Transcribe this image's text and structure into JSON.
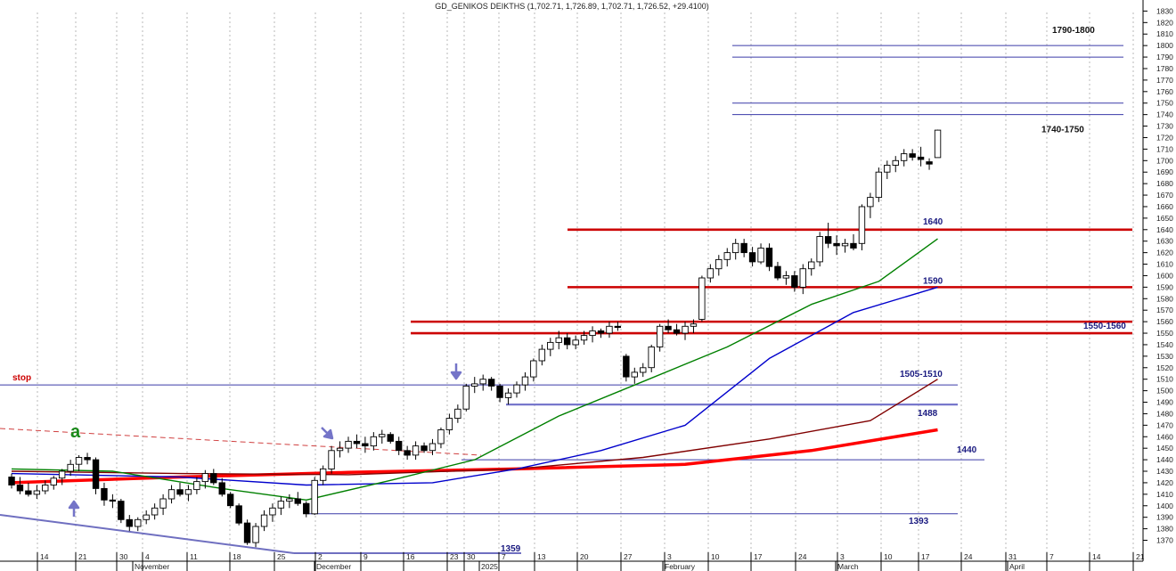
{
  "chart_data": {
    "type": "candlestick",
    "title": "GD_GENIKOS DEIKTHS (1,702.71, 1,726.89, 1,702.71, 1,726.52, +29.4100)",
    "y_range": [
      1362,
      1833
    ],
    "y_ticks": [
      1370,
      1380,
      1390,
      1400,
      1410,
      1420,
      1430,
      1440,
      1450,
      1460,
      1470,
      1480,
      1490,
      1500,
      1510,
      1520,
      1530,
      1540,
      1550,
      1560,
      1570,
      1580,
      1590,
      1600,
      1610,
      1620,
      1630,
      1640,
      1650,
      1660,
      1670,
      1680,
      1690,
      1700,
      1710,
      1720,
      1730,
      1740,
      1750,
      1760,
      1770,
      1780,
      1790,
      1800,
      1810,
      1820,
      1830
    ],
    "x_day_labels": [
      "14",
      "21",
      "30",
      "4",
      "11",
      "18",
      "25",
      "2",
      "9",
      "16",
      "23",
      "30",
      "7",
      "13",
      "20",
      "27",
      "3",
      "10",
      "17",
      "24",
      "3",
      "10",
      "17",
      "24",
      "31",
      "7",
      "14",
      "21"
    ],
    "x_month_labels": [
      "November",
      "December",
      "2025",
      "February",
      "March",
      "April"
    ],
    "candles": [
      [
        1425,
        1428,
        1415,
        1418
      ],
      [
        1418,
        1425,
        1410,
        1413
      ],
      [
        1413,
        1420,
        1408,
        1410
      ],
      [
        1410,
        1418,
        1406,
        1413
      ],
      [
        1413,
        1422,
        1410,
        1418
      ],
      [
        1418,
        1426,
        1414,
        1424
      ],
      [
        1424,
        1432,
        1418,
        1430
      ],
      [
        1430,
        1440,
        1426,
        1436
      ],
      [
        1436,
        1444,
        1430,
        1442
      ],
      [
        1442,
        1446,
        1436,
        1440
      ],
      [
        1440,
        1442,
        1410,
        1415
      ],
      [
        1415,
        1420,
        1400,
        1405
      ],
      [
        1405,
        1410,
        1398,
        1404
      ],
      [
        1404,
        1406,
        1385,
        1388
      ],
      [
        1388,
        1392,
        1378,
        1382
      ],
      [
        1382,
        1390,
        1378,
        1388
      ],
      [
        1388,
        1396,
        1384,
        1392
      ],
      [
        1392,
        1402,
        1388,
        1398
      ],
      [
        1398,
        1410,
        1392,
        1406
      ],
      [
        1406,
        1418,
        1402,
        1414
      ],
      [
        1414,
        1420,
        1408,
        1410
      ],
      [
        1410,
        1418,
        1404,
        1414
      ],
      [
        1414,
        1425,
        1410,
        1421
      ],
      [
        1421,
        1431,
        1415,
        1428
      ],
      [
        1428,
        1432,
        1418,
        1420
      ],
      [
        1420,
        1424,
        1408,
        1410
      ],
      [
        1410,
        1412,
        1398,
        1400
      ],
      [
        1400,
        1402,
        1383,
        1385
      ],
      [
        1385,
        1388,
        1366,
        1368
      ],
      [
        1368,
        1385,
        1364,
        1382
      ],
      [
        1382,
        1396,
        1378,
        1392
      ],
      [
        1392,
        1402,
        1386,
        1398
      ],
      [
        1398,
        1408,
        1392,
        1404
      ],
      [
        1404,
        1410,
        1398,
        1406
      ],
      [
        1406,
        1412,
        1400,
        1402
      ],
      [
        1402,
        1404,
        1390,
        1393
      ],
      [
        1393,
        1425,
        1392,
        1422
      ],
      [
        1422,
        1435,
        1418,
        1432
      ],
      [
        1432,
        1452,
        1428,
        1448
      ],
      [
        1448,
        1456,
        1442,
        1450
      ],
      [
        1450,
        1460,
        1446,
        1456
      ],
      [
        1456,
        1462,
        1450,
        1454
      ],
      [
        1454,
        1460,
        1446,
        1452
      ],
      [
        1452,
        1464,
        1448,
        1460
      ],
      [
        1460,
        1466,
        1454,
        1462
      ],
      [
        1462,
        1464,
        1454,
        1456
      ],
      [
        1456,
        1460,
        1444,
        1448
      ],
      [
        1448,
        1452,
        1440,
        1444
      ],
      [
        1444,
        1456,
        1440,
        1452
      ],
      [
        1452,
        1455,
        1446,
        1448
      ],
      [
        1448,
        1458,
        1444,
        1454
      ],
      [
        1454,
        1468,
        1450,
        1466
      ],
      [
        1466,
        1480,
        1462,
        1476
      ],
      [
        1476,
        1488,
        1472,
        1484
      ],
      [
        1484,
        1506,
        1482,
        1504
      ],
      [
        1504,
        1512,
        1498,
        1506
      ],
      [
        1506,
        1514,
        1500,
        1510
      ],
      [
        1510,
        1512,
        1500,
        1504
      ],
      [
        1504,
        1506,
        1490,
        1494
      ],
      [
        1494,
        1502,
        1488,
        1498
      ],
      [
        1498,
        1508,
        1494,
        1505
      ],
      [
        1505,
        1516,
        1500,
        1512
      ],
      [
        1512,
        1528,
        1508,
        1526
      ],
      [
        1526,
        1540,
        1522,
        1536
      ],
      [
        1536,
        1546,
        1530,
        1542
      ],
      [
        1542,
        1552,
        1536,
        1546
      ],
      [
        1546,
        1550,
        1536,
        1540
      ],
      [
        1540,
        1548,
        1536,
        1544
      ],
      [
        1544,
        1552,
        1540,
        1548
      ],
      [
        1548,
        1556,
        1542,
        1552
      ],
      [
        1552,
        1554,
        1546,
        1550
      ],
      [
        1550,
        1560,
        1546,
        1556
      ],
      [
        1556,
        1560,
        1552,
        1555
      ],
      [
        1530,
        1532,
        1508,
        1512
      ],
      [
        1512,
        1520,
        1506,
        1516
      ],
      [
        1516,
        1524,
        1512,
        1520
      ],
      [
        1520,
        1540,
        1516,
        1538
      ],
      [
        1538,
        1558,
        1534,
        1556
      ],
      [
        1556,
        1562,
        1550,
        1553
      ],
      [
        1553,
        1558,
        1548,
        1550
      ],
      [
        1550,
        1560,
        1544,
        1556
      ],
      [
        1556,
        1562,
        1550,
        1558
      ],
      [
        1562,
        1600,
        1560,
        1598
      ],
      [
        1598,
        1610,
        1594,
        1606
      ],
      [
        1606,
        1618,
        1600,
        1614
      ],
      [
        1614,
        1624,
        1608,
        1620
      ],
      [
        1620,
        1632,
        1614,
        1628
      ],
      [
        1628,
        1632,
        1616,
        1620
      ],
      [
        1620,
        1625,
        1608,
        1612
      ],
      [
        1612,
        1628,
        1610,
        1624
      ],
      [
        1624,
        1628,
        1604,
        1608
      ],
      [
        1608,
        1612,
        1596,
        1598
      ],
      [
        1598,
        1604,
        1592,
        1600
      ],
      [
        1600,
        1604,
        1586,
        1590
      ],
      [
        1590,
        1610,
        1584,
        1606
      ],
      [
        1606,
        1615,
        1600,
        1612
      ],
      [
        1612,
        1638,
        1608,
        1634
      ],
      [
        1634,
        1646,
        1624,
        1628
      ],
      [
        1628,
        1635,
        1618,
        1626
      ],
      [
        1626,
        1632,
        1620,
        1628
      ],
      [
        1628,
        1636,
        1622,
        1624
      ],
      [
        1628,
        1662,
        1622,
        1660
      ],
      [
        1660,
        1672,
        1650,
        1668
      ],
      [
        1668,
        1694,
        1664,
        1690
      ],
      [
        1690,
        1700,
        1684,
        1696
      ],
      [
        1696,
        1704,
        1690,
        1700
      ],
      [
        1700,
        1710,
        1695,
        1706
      ],
      [
        1706,
        1710,
        1700,
        1703
      ],
      [
        1703,
        1712,
        1695,
        1701
      ],
      [
        1699,
        1702,
        1692,
        1697
      ],
      [
        1702.71,
        1726.89,
        1702.71,
        1726.52
      ]
    ],
    "moving_averages": [
      {
        "color": "#ff0000",
        "label": "",
        "points": [
          [
            0,
            1420
          ],
          [
            20,
            1425
          ],
          [
            40,
            1429
          ],
          [
            60,
            1432
          ],
          [
            80,
            1436
          ],
          [
            95,
            1448
          ],
          [
            110,
            1466
          ]
        ]
      },
      {
        "color": "#800000",
        "label": "",
        "points": [
          [
            0,
            1430
          ],
          [
            20,
            1428
          ],
          [
            40,
            1427
          ],
          [
            60,
            1432
          ],
          [
            75,
            1442
          ],
          [
            90,
            1458
          ],
          [
            102,
            1474
          ],
          [
            110,
            1510
          ]
        ]
      },
      {
        "color": "#0000cc",
        "label": "",
        "points": [
          [
            0,
            1428
          ],
          [
            20,
            1425
          ],
          [
            35,
            1418
          ],
          [
            50,
            1420
          ],
          [
            60,
            1432
          ],
          [
            70,
            1448
          ],
          [
            80,
            1470
          ],
          [
            90,
            1528
          ],
          [
            100,
            1568
          ],
          [
            110,
            1590
          ]
        ]
      },
      {
        "color": "#008000",
        "label": "",
        "points": [
          [
            0,
            1432
          ],
          [
            12,
            1430
          ],
          [
            25,
            1415
          ],
          [
            35,
            1405
          ],
          [
            45,
            1422
          ],
          [
            55,
            1440
          ],
          [
            65,
            1478
          ],
          [
            75,
            1508
          ],
          [
            85,
            1538
          ],
          [
            95,
            1575
          ],
          [
            103,
            1595
          ],
          [
            110,
            1632
          ]
        ]
      }
    ],
    "levels": [
      {
        "value": 1640,
        "label": "1640",
        "color": "#cc0000",
        "style": "thick"
      },
      {
        "value": 1590,
        "label": "1590",
        "color": "#cc0000",
        "style": "thick"
      },
      {
        "value": 1560,
        "label": "",
        "color": "#cc0000",
        "style": "thick"
      },
      {
        "value": 1550,
        "label": "1550-1560",
        "color": "#cc0000",
        "style": "thick"
      },
      {
        "value": 1505,
        "label": "1505-1510",
        "color": "#3a3aa8",
        "style": "thin"
      },
      {
        "value": 1488,
        "label": "1488",
        "color": "#7777cc",
        "style": "medium"
      },
      {
        "value": 1440,
        "label": "1440",
        "color": "#3a3aa8",
        "style": "thin"
      },
      {
        "value": 1393,
        "label": "1393",
        "color": "#3a3aa8",
        "style": "thin"
      },
      {
        "value": 1800,
        "label": "1790-1800",
        "color": "#3a3aa8",
        "style": "thin"
      },
      {
        "value": 1790,
        "label": "",
        "color": "#3a3aa8",
        "style": "thin"
      },
      {
        "value": 1750,
        "label": "",
        "color": "#3a3aa8",
        "style": "thin"
      },
      {
        "value": 1740,
        "label": "1740-1750",
        "color": "#3a3aa8",
        "style": "thin"
      }
    ],
    "annotations": [
      {
        "text": "stop",
        "color": "#cc0000"
      },
      {
        "text": "a",
        "color": "#1a8a1a"
      },
      {
        "text": "1359",
        "color": "#1a1a80"
      }
    ]
  }
}
